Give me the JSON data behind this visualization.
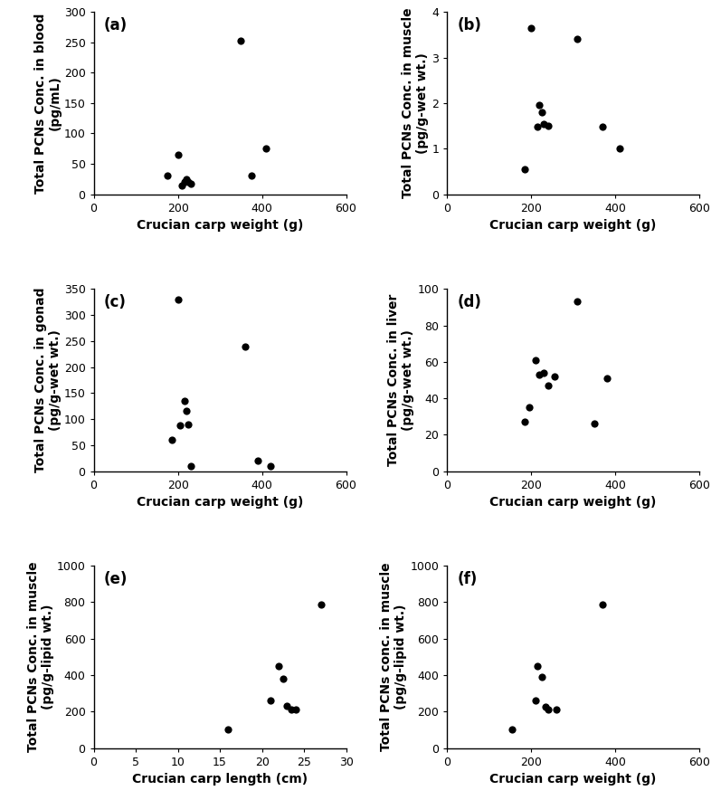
{
  "panels": [
    {
      "label": "(a)",
      "xlabel": "Crucian carp weight (g)",
      "ylabel": "Total PCNs Conc. in blood\n(pg/mL)",
      "xlim": [
        0,
        600
      ],
      "ylim": [
        0,
        300
      ],
      "xticks": [
        0,
        200,
        400,
        600
      ],
      "yticks": [
        0,
        50,
        100,
        150,
        200,
        250,
        300
      ],
      "x": [
        175,
        200,
        210,
        215,
        220,
        225,
        230,
        350,
        375,
        410
      ],
      "y": [
        30,
        65,
        15,
        20,
        25,
        20,
        17,
        253,
        30,
        75
      ]
    },
    {
      "label": "(b)",
      "xlabel": "Crucian carp weight (g)",
      "ylabel": "Total PCNs Conc. in muscle\n(pg/g-wet wt.)",
      "xlim": [
        0,
        600
      ],
      "ylim": [
        0,
        4
      ],
      "xticks": [
        0,
        200,
        400,
        600
      ],
      "yticks": [
        0,
        1,
        2,
        3,
        4
      ],
      "x": [
        185,
        200,
        215,
        220,
        225,
        230,
        240,
        310,
        370,
        410
      ],
      "y": [
        0.55,
        3.65,
        1.48,
        1.95,
        1.8,
        1.55,
        1.5,
        3.4,
        1.48,
        1.0
      ]
    },
    {
      "label": "(c)",
      "xlabel": "Crucian carp weight (g)",
      "ylabel": "Total PCNs Conc. in gonad\n(pg/g-wet wt.)",
      "xlim": [
        0,
        600
      ],
      "ylim": [
        0,
        350
      ],
      "xticks": [
        0,
        200,
        400,
        600
      ],
      "yticks": [
        0,
        50,
        100,
        150,
        200,
        250,
        300,
        350
      ],
      "x": [
        185,
        200,
        205,
        215,
        220,
        225,
        230,
        360,
        390,
        420
      ],
      "y": [
        60,
        330,
        88,
        135,
        115,
        90,
        10,
        240,
        20,
        10
      ]
    },
    {
      "label": "(d)",
      "xlabel": "Crucian carp weight (g)",
      "ylabel": "Total PCNs Conc. in liver\n(pg/g-wet wt.)",
      "xlim": [
        0,
        600
      ],
      "ylim": [
        0,
        100
      ],
      "xticks": [
        0,
        200,
        400,
        600
      ],
      "yticks": [
        0,
        20,
        40,
        60,
        80,
        100
      ],
      "x": [
        185,
        195,
        210,
        220,
        230,
        240,
        255,
        310,
        350,
        380
      ],
      "y": [
        27,
        35,
        61,
        53,
        54,
        47,
        52,
        93,
        26,
        51
      ]
    },
    {
      "label": "(e)",
      "xlabel": "Crucian carp length (cm)",
      "ylabel": "Total PCNs Conc. in muscle\n(pg/g-lipid wt.)",
      "xlim": [
        0,
        30
      ],
      "ylim": [
        0,
        1000
      ],
      "xticks": [
        0,
        5,
        10,
        15,
        20,
        25,
        30
      ],
      "yticks": [
        0,
        200,
        400,
        600,
        800,
        1000
      ],
      "x": [
        16,
        21,
        22,
        22.5,
        23,
        23.5,
        24,
        27
      ],
      "y": [
        100,
        260,
        450,
        380,
        230,
        210,
        210,
        790
      ]
    },
    {
      "label": "(f)",
      "xlabel": "Crucian carp weight (g)",
      "ylabel": "Total PCNs conc. in muscle\n(pg/g-lipid wt.)",
      "xlim": [
        0,
        600
      ],
      "ylim": [
        0,
        1000
      ],
      "xticks": [
        0,
        200,
        400,
        600
      ],
      "yticks": [
        0,
        200,
        400,
        600,
        800,
        1000
      ],
      "x": [
        155,
        210,
        215,
        225,
        235,
        240,
        260,
        370
      ],
      "y": [
        100,
        260,
        450,
        390,
        225,
        210,
        210,
        790
      ]
    }
  ],
  "dot_color": "#000000",
  "dot_size": 35,
  "tick_fontsize": 9,
  "axis_label_fontsize": 10,
  "panel_label_fontsize": 12,
  "bg_color": "#ffffff"
}
